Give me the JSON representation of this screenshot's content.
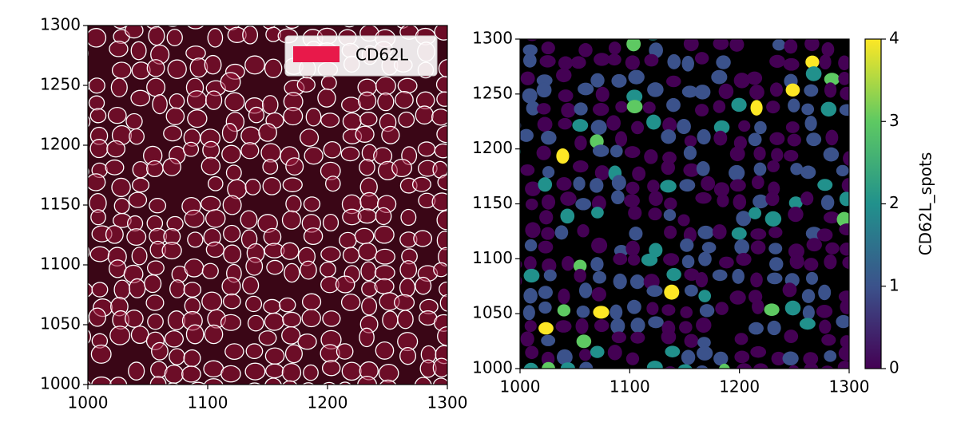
{
  "chart_data": [
    {
      "type": "image",
      "xlim": [
        1000,
        1300
      ],
      "ylim": [
        1000,
        1300
      ],
      "xticks": [
        1000,
        1100,
        1200,
        1300
      ],
      "yticks": [
        1000,
        1050,
        1100,
        1150,
        1200,
        1250,
        1300
      ],
      "legend": {
        "label": "CD62L",
        "color": "#e8194a",
        "corner": "upper right"
      }
    },
    {
      "type": "image",
      "xlim": [
        1000,
        1300
      ],
      "ylim": [
        1000,
        1300
      ],
      "xticks": [
        1000,
        1100,
        1200,
        1300
      ],
      "yticks": [
        1000,
        1050,
        1100,
        1150,
        1200,
        1250,
        1300
      ],
      "colorbar": {
        "label": "CD62L_spots",
        "lim": [
          0,
          4
        ],
        "ticks": [
          0,
          1,
          2,
          3,
          4
        ],
        "colormap": "viridis"
      }
    }
  ]
}
